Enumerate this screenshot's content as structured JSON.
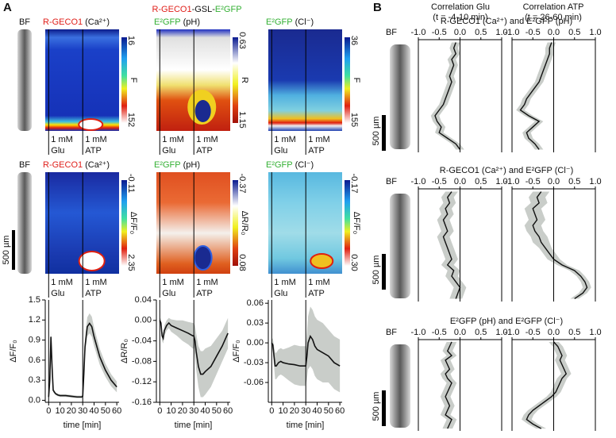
{
  "panel_labels": [
    "A",
    "B"
  ],
  "panel_a": {
    "title": [
      "R-GECO1",
      "-GSL-",
      "E²GFP"
    ],
    "bf_label": "BF",
    "scale_bar": "500 µm",
    "stimuli": [
      [
        "1 mM",
        "Glu"
      ],
      [
        "1 mM",
        "ATP"
      ]
    ],
    "events": [
      0,
      30
    ],
    "columns": [
      {
        "sensor": "R-GECO1",
        "ion": "(Ca²⁺)",
        "color": "#e0201b"
      },
      {
        "sensor": "E²GFP",
        "ion": "(pH)",
        "color": "#34b034"
      },
      {
        "sensor": "E²GFP",
        "ion": "(Cl⁻)",
        "color": "#34b034"
      }
    ],
    "colorbars": [
      [
        {
          "ticks": [
            16,
            152
          ],
          "label": "F"
        },
        {
          "ticks": [
            0.63,
            1.15
          ],
          "label": "R"
        },
        {
          "ticks": [
            36,
            155
          ],
          "label": "F"
        }
      ],
      [
        {
          "ticks": [
            -0.11,
            2.35
          ],
          "label": "ΔF/F₀"
        },
        {
          "ticks": [
            -0.37,
            0.08
          ],
          "label": "ΔR/R₀"
        },
        {
          "ticks": [
            -0.17,
            {
              "value": 0.3,
              "label": "0.30"
            }
          ],
          "label": "ΔF/F₀"
        }
      ]
    ]
  },
  "panel_b": {
    "bf_label": "BF",
    "scale_bar": "500 µm",
    "columns": [
      [
        "Correlation Glu",
        "(t = -4-10 min)"
      ],
      [
        "Correlation ATP",
        "(t = 26-60 min)"
      ]
    ],
    "rows": [
      "R-GECO1 (Ca²⁺) and E²GFP (pH)",
      "R-GECO1 (Ca²⁺) and E²GFP (Cl⁻)",
      "E²GFP (pH) and E²GFP (Cl⁻)"
    ]
  },
  "chart_data": [
    {
      "type": "line",
      "ylabel": "ΔF/F₀",
      "xlabel": "time [min]",
      "x": [
        0,
        1,
        2,
        3,
        4,
        6,
        8,
        10,
        15,
        20,
        25,
        29,
        30,
        31,
        32,
        34,
        36,
        38,
        40,
        45,
        50,
        55,
        60
      ],
      "series": [
        {
          "color": "#111111",
          "band_color": "#c9cdc9",
          "values": [
            0.05,
            0.3,
            0.95,
            0.5,
            0.15,
            0.1,
            0.08,
            0.07,
            0.07,
            0.06,
            0.05,
            0.05,
            0.06,
            0.4,
            0.8,
            1.1,
            1.15,
            1.1,
            0.95,
            0.65,
            0.45,
            0.3,
            0.2
          ],
          "error": [
            0.02,
            0.05,
            0.08,
            0.06,
            0.03,
            0.02,
            0.02,
            0.02,
            0.02,
            0.02,
            0.02,
            0.02,
            0.03,
            0.08,
            0.12,
            0.14,
            0.15,
            0.15,
            0.14,
            0.12,
            0.1,
            0.09,
            0.08
          ]
        }
      ],
      "xlim": [
        -3,
        62
      ],
      "xticks": [
        0,
        10,
        20,
        30,
        40,
        50,
        60
      ],
      "ylim": [
        -0.03,
        1.5
      ],
      "yticks": [
        {
          "value": 0,
          "label": "0.0"
        },
        0.3,
        0.6,
        0.9,
        1.2,
        1.5
      ]
    },
    {
      "type": "line",
      "ylabel": "ΔR/R₀",
      "xlabel": "time [min]",
      "x": [
        0,
        1,
        2,
        3,
        4,
        6,
        8,
        10,
        15,
        20,
        25,
        29,
        30,
        31,
        32,
        34,
        36,
        38,
        40,
        45,
        50,
        55,
        60
      ],
      "series": [
        {
          "color": "#111111",
          "band_color": "#c9cdc9",
          "values": [
            0,
            -0.005,
            -0.03,
            -0.035,
            -0.02,
            -0.01,
            -0.005,
            -0.01,
            -0.015,
            -0.02,
            -0.025,
            -0.03,
            -0.03,
            -0.04,
            -0.06,
            -0.09,
            -0.105,
            -0.105,
            -0.1,
            -0.09,
            -0.07,
            -0.05,
            -0.025
          ],
          "error": [
            0.005,
            0.008,
            0.01,
            0.01,
            0.01,
            0.01,
            0.01,
            0.012,
            0.015,
            0.02,
            0.022,
            0.025,
            0.025,
            0.03,
            0.035,
            0.04,
            0.045,
            0.045,
            0.045,
            0.04,
            0.035,
            0.03,
            0.03
          ]
        }
      ],
      "xlim": [
        -3,
        62
      ],
      "xticks": [
        0,
        10,
        20,
        30,
        40,
        50,
        60
      ],
      "ylim": [
        -0.16,
        0.04
      ],
      "yticks": [
        0.04,
        {
          "value": 0,
          "label": "0.00"
        },
        -0.04,
        -0.08,
        -0.12,
        -0.16
      ]
    },
    {
      "type": "line",
      "ylabel": "ΔF/F₀",
      "xlabel": "time [min]",
      "x": [
        0,
        1,
        2,
        3,
        4,
        6,
        8,
        10,
        15,
        20,
        25,
        29,
        30,
        31,
        32,
        34,
        36,
        38,
        40,
        45,
        50,
        55,
        60
      ],
      "series": [
        {
          "color": "#111111",
          "band_color": "#c9cdc9",
          "values": [
            0,
            -0.003,
            -0.02,
            -0.035,
            -0.035,
            -0.03,
            -0.028,
            -0.03,
            -0.032,
            -0.033,
            -0.035,
            -0.035,
            -0.035,
            -0.02,
            0,
            0.01,
            0.005,
            -0.005,
            -0.01,
            -0.015,
            -0.02,
            -0.03,
            -0.035
          ],
          "error": [
            0.005,
            0.01,
            0.015,
            0.02,
            0.02,
            0.02,
            0.02,
            0.02,
            0.025,
            0.03,
            0.03,
            0.03,
            0.03,
            0.035,
            0.04,
            0.045,
            0.045,
            0.045,
            0.045,
            0.045,
            0.04,
            0.04,
            0.04
          ]
        }
      ],
      "xlim": [
        -3,
        62
      ],
      "xticks": [
        0,
        10,
        20,
        30,
        40,
        50,
        60
      ],
      "ylim": [
        -0.09,
        0.065
      ],
      "yticks": [
        0.06,
        0.03,
        {
          "value": 0,
          "label": "0.00"
        },
        -0.03,
        -0.06
      ]
    },
    {
      "type": "profile",
      "xlim": [
        -1,
        1
      ],
      "xticks": [
        {
          "value": -1,
          "label": "-1.0"
        },
        -0.5,
        {
          "value": 0,
          "label": "0.0"
        },
        0.5,
        {
          "value": 1,
          "label": "1.0"
        }
      ],
      "color": "#111111",
      "band_color": "#c9cdc9",
      "values": [
        -0.1,
        -0.15,
        -0.1,
        -0.2,
        -0.15,
        -0.2,
        -0.25,
        -0.2,
        -0.25,
        -0.3,
        -0.35,
        -0.4,
        -0.5,
        -0.6,
        -0.55,
        -0.45,
        -0.5,
        -0.3,
        -0.1,
        0
      ],
      "error": [
        0.1,
        0.1,
        0.1,
        0.1,
        0.1,
        0.1,
        0.1,
        0.1,
        0.1,
        0.1,
        0.1,
        0.1,
        0.1,
        0.1,
        0.1,
        0.1,
        0.1,
        0.1,
        0.1,
        0.1
      ]
    },
    {
      "type": "profile",
      "xlim": [
        -1,
        1
      ],
      "xticks": [
        {
          "value": -1,
          "label": "-1.0"
        },
        -0.5,
        {
          "value": 0,
          "label": "0.0"
        },
        0.5,
        {
          "value": 1,
          "label": "1.0"
        }
      ],
      "color": "#111111",
      "band_color": "#c9cdc9",
      "values": [
        -0.05,
        -0.1,
        -0.1,
        -0.15,
        -0.2,
        -0.25,
        -0.3,
        -0.35,
        -0.45,
        -0.55,
        -0.65,
        -0.7,
        -0.8,
        -0.6,
        -0.35,
        -0.5,
        -0.65,
        -0.6,
        -0.45,
        -0.35
      ],
      "error": [
        0.1,
        0.1,
        0.1,
        0.1,
        0.1,
        0.1,
        0.1,
        0.1,
        0.1,
        0.1,
        0.1,
        0.1,
        0.1,
        0.1,
        0.1,
        0.1,
        0.1,
        0.1,
        0.1,
        0.1
      ]
    },
    {
      "type": "profile",
      "xlim": [
        -1,
        1
      ],
      "xticks": [
        {
          "value": -1,
          "label": "-1.0"
        },
        -0.5,
        {
          "value": 0,
          "label": "0.0"
        },
        0.5,
        {
          "value": 1,
          "label": "1.0"
        }
      ],
      "color": "#111111",
      "band_color": "#c9cdc9",
      "values": [
        -0.2,
        -0.3,
        -0.25,
        -0.35,
        -0.3,
        -0.4,
        -0.35,
        -0.3,
        -0.4,
        -0.35,
        -0.3,
        -0.25,
        -0.2,
        -0.3,
        -0.15,
        -0.2,
        -0.1,
        0,
        -0.05,
        -0.1
      ],
      "error": [
        0.15,
        0.15,
        0.15,
        0.15,
        0.15,
        0.15,
        0.15,
        0.15,
        0.15,
        0.15,
        0.15,
        0.15,
        0.15,
        0.15,
        0.15,
        0.15,
        0.15,
        0.15,
        0.15,
        0.15
      ]
    },
    {
      "type": "profile",
      "xlim": [
        -1,
        1
      ],
      "xticks": [
        {
          "value": -1,
          "label": "-1.0"
        },
        -0.5,
        {
          "value": 0,
          "label": "0.0"
        },
        0.5,
        {
          "value": 1,
          "label": "1.0"
        }
      ],
      "color": "#111111",
      "band_color": "#c9cdc9",
      "values": [
        -0.3,
        -0.4,
        -0.35,
        -0.5,
        -0.45,
        -0.4,
        -0.5,
        -0.45,
        -0.35,
        -0.3,
        -0.2,
        -0.1,
        0,
        0.2,
        0.5,
        0.65,
        0.75,
        0.8,
        0.7,
        0.5
      ],
      "error": [
        0.2,
        0.2,
        0.2,
        0.2,
        0.2,
        0.2,
        0.2,
        0.2,
        0.2,
        0.2,
        0.15,
        0.15,
        0.15,
        0.12,
        0.12,
        0.1,
        0.1,
        0.1,
        0.1,
        0.1
      ]
    },
    {
      "type": "profile",
      "xlim": [
        -1,
        1
      ],
      "xticks": [
        {
          "value": -1,
          "label": "-1.0"
        },
        -0.5,
        {
          "value": 0,
          "label": "0.0"
        },
        0.5,
        {
          "value": 1,
          "label": "1.0"
        }
      ],
      "color": "#111111",
      "band_color": "#c9cdc9",
      "values": [
        -0.2,
        -0.25,
        -0.3,
        -0.2,
        -0.35,
        -0.3,
        -0.25,
        -0.35,
        -0.3,
        -0.2,
        -0.25,
        -0.3,
        -0.35,
        -0.3,
        -0.25,
        -0.3,
        -0.35,
        -0.2,
        -0.25,
        -0.3
      ],
      "error": [
        0.12,
        0.12,
        0.12,
        0.12,
        0.12,
        0.12,
        0.12,
        0.12,
        0.12,
        0.12,
        0.12,
        0.12,
        0.12,
        0.12,
        0.12,
        0.12,
        0.12,
        0.12,
        0.12,
        0.12
      ]
    },
    {
      "type": "profile",
      "xlim": [
        -1,
        1
      ],
      "xticks": [
        {
          "value": -1,
          "label": "-1.0"
        },
        -0.5,
        {
          "value": 0,
          "label": "0.0"
        },
        0.5,
        {
          "value": 1,
          "label": "1.0"
        }
      ],
      "color": "#111111",
      "band_color": "#c9cdc9",
      "values": [
        0,
        0.1,
        0.15,
        0.2,
        0.15,
        0.2,
        0.25,
        0.3,
        0.2,
        0.15,
        0.1,
        0.05,
        -0.05,
        -0.2,
        -0.35,
        -0.5,
        -0.6,
        -0.65,
        -0.5,
        -0.3
      ],
      "error": [
        0.12,
        0.12,
        0.12,
        0.12,
        0.12,
        0.12,
        0.12,
        0.12,
        0.12,
        0.12,
        0.12,
        0.12,
        0.12,
        0.12,
        0.12,
        0.12,
        0.12,
        0.12,
        0.12,
        0.12
      ]
    }
  ]
}
